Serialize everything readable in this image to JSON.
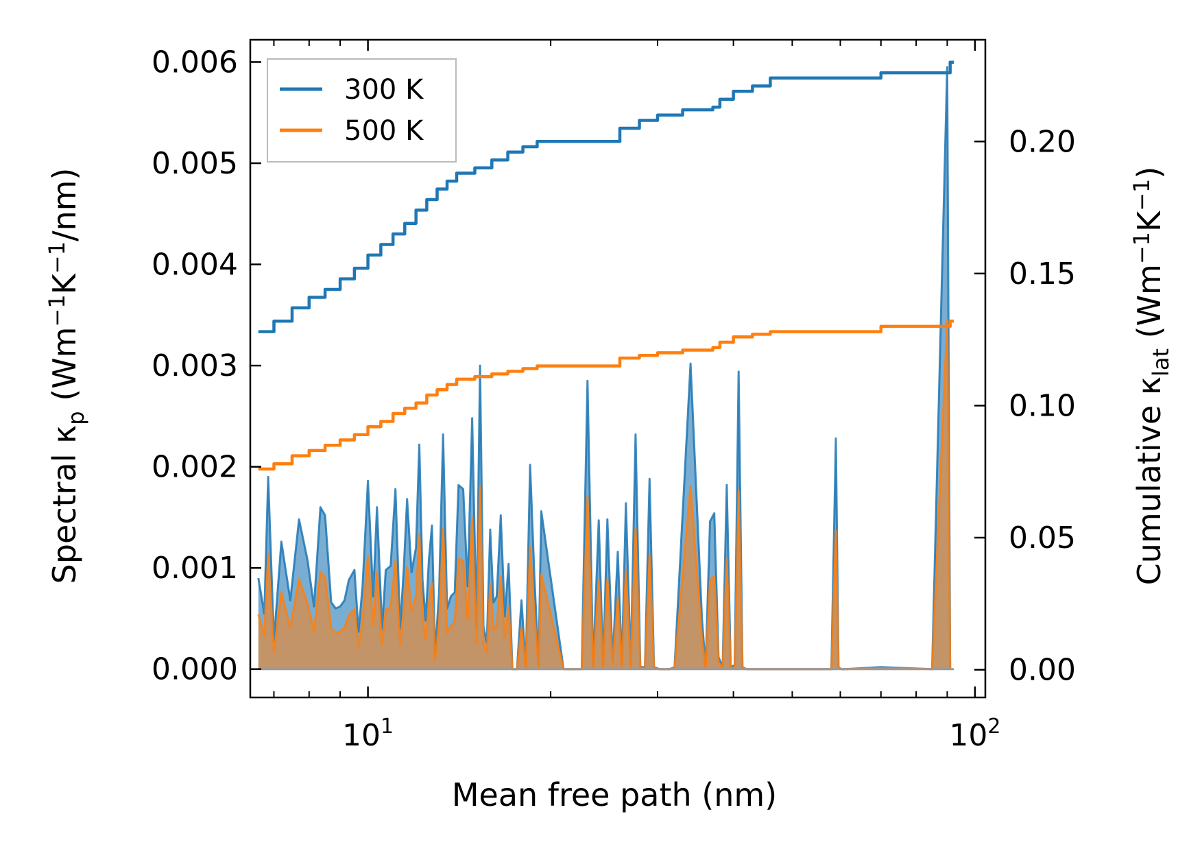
{
  "chart_data": {
    "type": "line",
    "x_scale": "log",
    "xlabel": "Mean free path (nm)",
    "ylabel_left": {
      "main": "Spectral κ",
      "sub": "p",
      "units_open": " (Wm",
      "units_exp1": "−1",
      "units_mid": "K",
      "units_exp2": "−1",
      "units_close": "/nm)"
    },
    "ylabel_right": {
      "main": "Cumulative κ",
      "sub": "lat",
      "units_open": " (Wm",
      "units_exp1": "−1",
      "units_mid": "K",
      "units_exp2": "−1",
      "units_close": ")"
    },
    "xlim": [
      6.4,
      104
    ],
    "ylim_left": [
      -0.00028,
      0.00622
    ],
    "ylim_right": [
      -0.0105,
      0.2385
    ],
    "x_tick_labels": [
      {
        "x": 10,
        "base": "10",
        "exp": "1"
      },
      {
        "x": 100,
        "base": "10",
        "exp": "2"
      }
    ],
    "y_ticks_left": [
      {
        "v": 0,
        "label": "0.000"
      },
      {
        "v": 0.001,
        "label": "0.001"
      },
      {
        "v": 0.002,
        "label": "0.002"
      },
      {
        "v": 0.003,
        "label": "0.003"
      },
      {
        "v": 0.004,
        "label": "0.004"
      },
      {
        "v": 0.005,
        "label": "0.005"
      },
      {
        "v": 0.006,
        "label": "0.006"
      }
    ],
    "y_ticks_right": [
      {
        "v": 0,
        "label": "0.00"
      },
      {
        "v": 0.05,
        "label": "0.05"
      },
      {
        "v": 0.1,
        "label": "0.10"
      },
      {
        "v": 0.15,
        "label": "0.15"
      },
      {
        "v": 0.2,
        "label": "0.20"
      }
    ],
    "legend": [
      {
        "label": "300 K",
        "color": "#1f77b4"
      },
      {
        "label": "500 K",
        "color": "#ff7f0e"
      }
    ],
    "spectral_x": [
      6.6,
      6.75,
      6.85,
      7.0,
      7.2,
      7.45,
      7.7,
      7.95,
      8.15,
      8.35,
      8.5,
      8.7,
      8.85,
      9.0,
      9.15,
      9.3,
      9.5,
      9.65,
      9.8,
      10.0,
      10.2,
      10.35,
      10.55,
      10.7,
      10.9,
      11.1,
      11.3,
      11.45,
      11.6,
      11.8,
      12.0,
      12.15,
      12.3,
      12.45,
      12.6,
      12.75,
      12.9,
      13.1,
      13.3,
      13.5,
      13.7,
      13.9,
      14.1,
      14.35,
      14.6,
      14.85,
      15.1,
      15.3,
      15.5,
      15.7,
      15.9,
      16.1,
      16.3,
      16.55,
      16.8,
      17.05,
      17.3,
      17.6,
      17.9,
      18.2,
      18.5,
      18.8,
      19.1,
      19.3,
      21.0,
      22.5,
      23.0,
      23.5,
      24.0,
      24.4,
      24.8,
      25.3,
      25.8,
      26.2,
      26.6,
      27.1,
      27.6,
      28.1,
      28.6,
      29.1,
      29.6,
      30.2,
      30.8,
      31.4,
      32.0,
      34.0,
      35.5,
      36.0,
      36.6,
      37.2,
      37.8,
      38.4,
      39.0,
      39.6,
      40.2,
      40.8,
      41.4,
      42.0,
      42.6,
      43.2,
      43.8,
      44.4,
      45.0,
      45.6,
      46.2,
      50.0,
      58.0,
      59.0,
      59.6,
      60.2,
      61.0,
      70.0,
      85.0,
      90.0,
      91.0,
      91.7,
      92.3
    ],
    "series": [
      {
        "name": "300 K",
        "color": "#1f77b4",
        "spectral": [
          0.0009,
          0.00055,
          0.0019,
          0.00028,
          0.00126,
          0.00068,
          0.00148,
          0.00108,
          0.00062,
          0.0016,
          0.00152,
          0.00066,
          0.0006,
          0.00062,
          0.00068,
          0.00088,
          0.00098,
          0.00037,
          0.00082,
          0.00186,
          0.00072,
          0.0016,
          0.0004,
          0.00098,
          0.00102,
          0.00178,
          0.0004,
          0.00097,
          0.00168,
          0.00096,
          0.0012,
          0.00222,
          0.00088,
          0.00048,
          0.00108,
          0.00142,
          0.00015,
          0.00076,
          0.00232,
          0.0006,
          0.00072,
          0.00076,
          0.00182,
          0.00178,
          0.00082,
          0.00248,
          0.00042,
          0.003,
          0.00042,
          0.00026,
          0.00138,
          0.00066,
          0.00072,
          0.00152,
          0.00052,
          0.00104,
          0,
          0,
          0.00068,
          2e-05,
          0.00202,
          0.00092,
          4e-05,
          0.00156,
          0,
          0,
          0.00285,
          2e-05,
          0.00147,
          4e-05,
          0.00148,
          8e-05,
          0.00116,
          4e-05,
          0.00164,
          4e-05,
          0.00232,
          2e-05,
          2e-05,
          0.00188,
          2e-05,
          0,
          0,
          0,
          2e-05,
          0.00302,
          0.0005,
          2e-05,
          0.00146,
          0.00154,
          0.00012,
          2e-05,
          0.00182,
          2e-05,
          4e-05,
          0.00294,
          2e-05,
          0,
          0,
          0,
          0,
          0,
          0,
          0,
          0,
          0,
          0,
          0.00228,
          2e-05,
          0,
          0,
          2e-05,
          0,
          0.00595,
          0
        ]
      },
      {
        "name": "500 K",
        "color": "#ff7f0e",
        "spectral": [
          0.00054,
          0.00033,
          0.00114,
          0.00017,
          0.00076,
          0.00041,
          0.00089,
          0.00065,
          0.00037,
          0.00096,
          0.00091,
          0.0004,
          0.00036,
          0.00037,
          0.00041,
          0.00053,
          0.00059,
          0.00022,
          0.00049,
          0.00112,
          0.00043,
          0.00096,
          0.00024,
          0.00059,
          0.00061,
          0.00107,
          0.00024,
          0.00058,
          0.00101,
          0.00058,
          0.00072,
          0.00133,
          0.00053,
          0.00029,
          0.00065,
          0.00085,
          9e-05,
          0.00046,
          0.00139,
          0.00036,
          0.00043,
          0.00046,
          0.00109,
          0.00107,
          0.00049,
          0.00149,
          0.00025,
          0.0018,
          0.00025,
          0.00016,
          0.00083,
          0.0004,
          0.00043,
          0.00091,
          0.00031,
          0.00062,
          0,
          0,
          0.00041,
          1e-05,
          0.00121,
          0.00055,
          2e-05,
          0.00094,
          0,
          0,
          0.00171,
          1e-05,
          0.00088,
          2e-05,
          0.00089,
          5e-05,
          0.0007,
          2e-05,
          0.00098,
          2e-05,
          0.00139,
          1e-05,
          1e-05,
          0.00113,
          1e-05,
          0,
          0,
          0,
          1e-05,
          0.00181,
          0.0003,
          1e-05,
          0.00088,
          0.00092,
          7e-05,
          1e-05,
          0.00109,
          1e-05,
          2e-05,
          0.00176,
          1e-05,
          0,
          0,
          0,
          0,
          0,
          0,
          0,
          0,
          0,
          0,
          0.00137,
          1e-05,
          0,
          0,
          1e-05,
          0,
          0.00345,
          0
        ]
      }
    ],
    "cumulative": [
      {
        "name": "300 K",
        "color": "#1f77b4",
        "x": [
          6.6,
          7.0,
          7.5,
          8.0,
          8.5,
          9.0,
          9.5,
          10.0,
          10.5,
          11.0,
          11.5,
          12.0,
          12.5,
          13.0,
          13.5,
          14.0,
          15.0,
          16.0,
          17.0,
          18.0,
          19.0,
          20.0,
          23.0,
          26.0,
          28.0,
          30.0,
          33.0,
          37.0,
          38.0,
          40.0,
          43.0,
          46.0,
          50.0,
          60.0,
          70.0,
          90.0,
          91.0,
          92.3
        ],
        "y": [
          0.128,
          0.132,
          0.137,
          0.141,
          0.144,
          0.148,
          0.152,
          0.157,
          0.161,
          0.165,
          0.169,
          0.174,
          0.178,
          0.182,
          0.185,
          0.188,
          0.19,
          0.193,
          0.196,
          0.198,
          0.2,
          0.2,
          0.2,
          0.205,
          0.208,
          0.21,
          0.212,
          0.213,
          0.216,
          0.219,
          0.221,
          0.224,
          0.224,
          0.224,
          0.226,
          0.226,
          0.23,
          0.23
        ]
      },
      {
        "name": "500 K",
        "color": "#ff7f0e",
        "x": [
          6.6,
          7.0,
          7.5,
          8.0,
          8.5,
          9.0,
          9.5,
          10.0,
          10.5,
          11.0,
          11.5,
          12.0,
          12.5,
          13.0,
          13.5,
          14.0,
          15.0,
          16.0,
          17.0,
          18.0,
          19.0,
          20.0,
          23.0,
          26.0,
          28.0,
          30.0,
          33.0,
          37.0,
          38.0,
          40.0,
          43.0,
          46.0,
          50.0,
          60.0,
          70.0,
          90.0,
          91.0,
          92.3
        ],
        "y": [
          0.076,
          0.078,
          0.081,
          0.083,
          0.085,
          0.087,
          0.089,
          0.092,
          0.094,
          0.097,
          0.099,
          0.101,
          0.104,
          0.106,
          0.108,
          0.11,
          0.111,
          0.112,
          0.113,
          0.114,
          0.115,
          0.115,
          0.115,
          0.118,
          0.119,
          0.12,
          0.121,
          0.122,
          0.124,
          0.126,
          0.127,
          0.128,
          0.128,
          0.128,
          0.13,
          0.13,
          0.132,
          0.132
        ]
      }
    ]
  }
}
